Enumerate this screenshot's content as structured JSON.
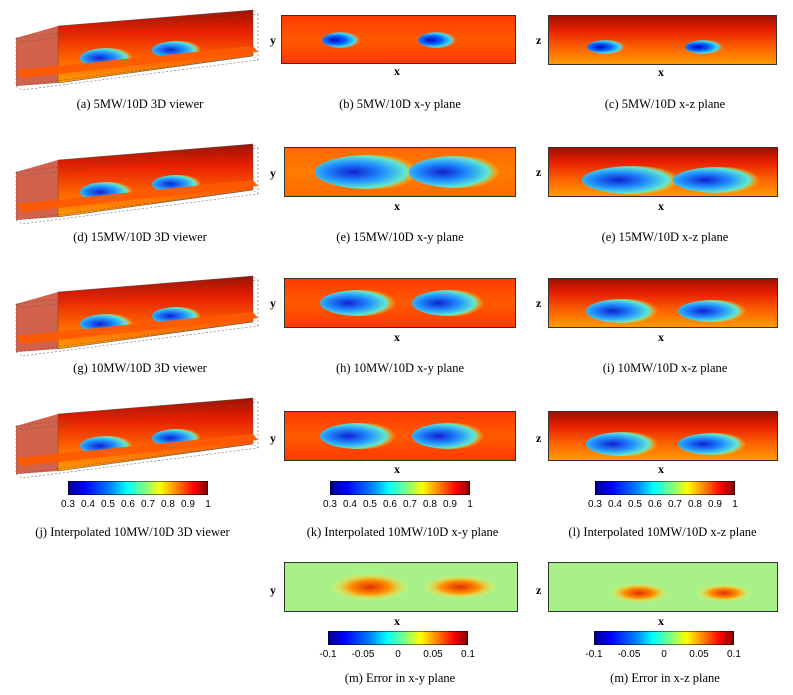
{
  "captions": {
    "a": "(a) 5MW/10D 3D viewer",
    "b": "(b) 5MW/10D x-y plane",
    "c": "(c) 5MW/10D x-z plane",
    "d": "(d) 15MW/10D 3D viewer",
    "e1": "(e) 15MW/10D x-y plane",
    "e2": "(e) 15MW/10D x-z plane",
    "g": "(g) 10MW/10D 3D viewer",
    "h": "(h) 10MW/10D x-y plane",
    "i": "(i) 10MW/10D x-z plane",
    "j": "(j) Interpolated 10MW/10D 3D viewer",
    "k": "(k) Interpolated 10MW/10D x-y plane",
    "l": "(l) Interpolated 10MW/10D x-z plane",
    "m1": "(m) Error in x-y plane",
    "m2": "(m) Error in x-z plane"
  },
  "axes": {
    "x": "x",
    "y": "y",
    "z": "z"
  },
  "colorbar_velocity": {
    "min": 0.3,
    "max": 1,
    "ticks": [
      "0.3",
      "0.4",
      "0.5",
      "0.6",
      "0.7",
      "0.8",
      "0.9",
      "1"
    ]
  },
  "colorbar_error": {
    "min": -0.1,
    "max": 0.1,
    "ticks": [
      "-0.1",
      "-0.05",
      "0",
      "0.05",
      "0.1"
    ]
  },
  "colormap": [
    "#00008f",
    "#0000ff",
    "#0080ff",
    "#00ffff",
    "#80ff80",
    "#ffff00",
    "#ff8000",
    "#ff0000",
    "#800000"
  ]
}
